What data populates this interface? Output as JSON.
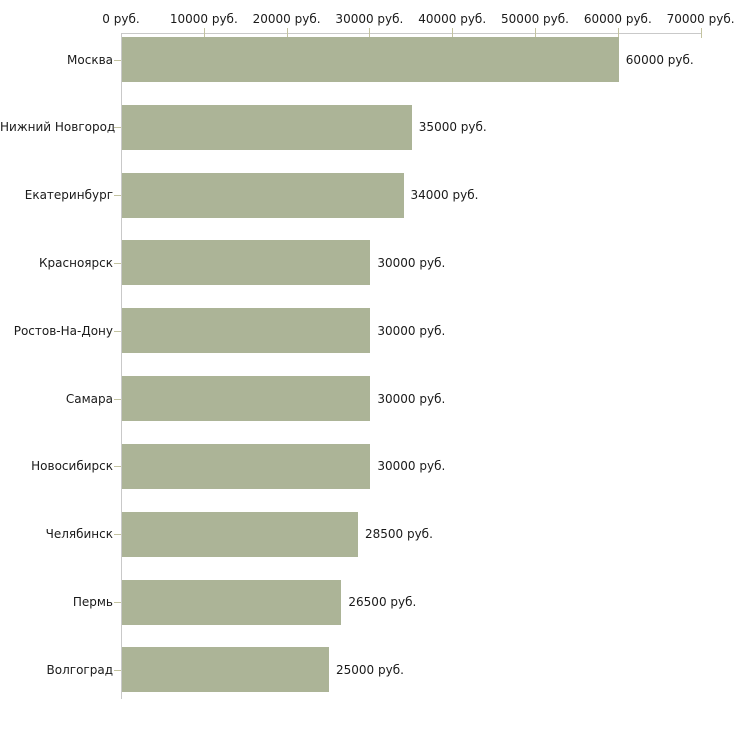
{
  "chart_data": {
    "type": "bar",
    "orientation": "horizontal",
    "title": "",
    "unit": "руб.",
    "categories": [
      "Москва",
      "Нижний Новгород",
      "Екатеринбург",
      "Красноярск",
      "Ростов-На-Дону",
      "Самара",
      "Новосибирск",
      "Челябинск",
      "Пермь",
      "Волгоград"
    ],
    "values": [
      60000,
      35000,
      34000,
      30000,
      30000,
      30000,
      30000,
      28500,
      26500,
      25000
    ],
    "value_labels": [
      "60000 руб.",
      "35000 руб.",
      "34000 руб.",
      "30000 руб.",
      "30000 руб.",
      "30000 руб.",
      "30000 руб.",
      "28500 руб.",
      "26500 руб.",
      "25000 руб."
    ],
    "x_axis": {
      "position": "top",
      "min": 0,
      "max": 70000,
      "tick_step": 10000,
      "tick_labels": [
        "0 руб.",
        "10000 руб.",
        "20000 руб.",
        "30000 руб.",
        "40000 руб.",
        "50000 руб.",
        "60000 руб.",
        "70000 руб."
      ]
    },
    "legend": "none",
    "grid": "off",
    "colors": {
      "bar": "#acb497",
      "axis_line": "#c9c9c9",
      "tick": "#c3c3a0",
      "text": "#1a1a1a",
      "background": "#ffffff"
    }
  }
}
